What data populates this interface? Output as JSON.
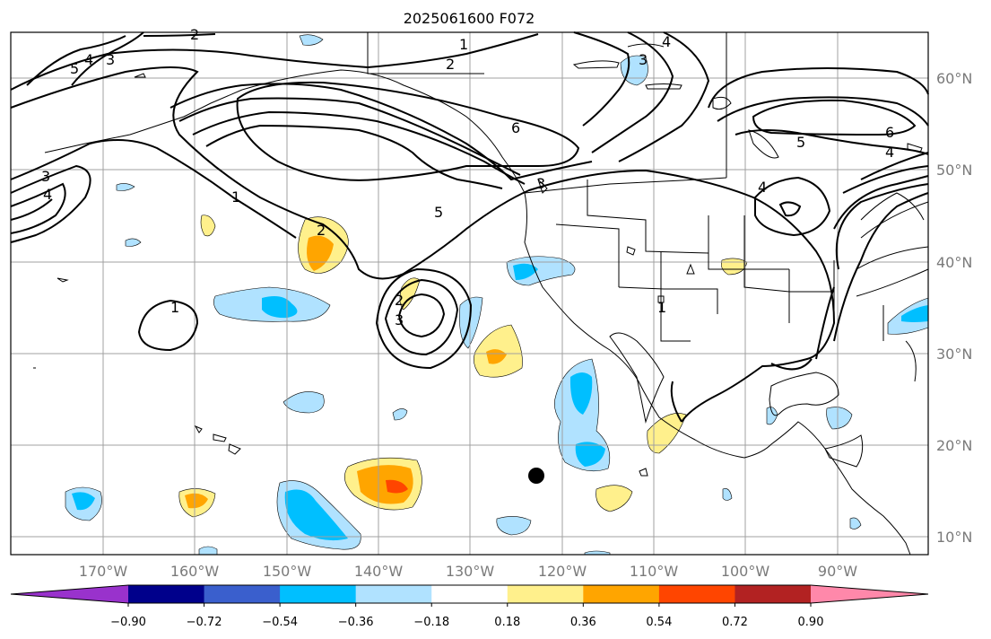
{
  "title": "2025061600 F072",
  "lon_labels": [
    "170°W",
    "160°W",
    "150°W",
    "140°W",
    "130°W",
    "120°W",
    "110°W",
    "100°W",
    "90°W"
  ],
  "lat_labels": [
    "60°N",
    "50°N",
    "40°N",
    "30°N",
    "20°N",
    "10°N"
  ],
  "colorbar": {
    "colors": [
      "#9932cc",
      "#00008b",
      "#3a5fcd",
      "#00bfff",
      "#b0e2ff",
      "#ffffff",
      "#fff08c",
      "#ffa500",
      "#ff4500",
      "#b22222",
      "#ff88aa"
    ],
    "labels": [
      "−0.90",
      "−0.72",
      "−0.54",
      "−0.36",
      "−0.18",
      "0.18",
      "0.36",
      "0.54",
      "0.72",
      "0.90"
    ]
  },
  "contour_labels": [
    "1",
    "2",
    "3",
    "4",
    "5",
    "6"
  ],
  "marker": {
    "name": "point-marker",
    "color": "#000000"
  }
}
